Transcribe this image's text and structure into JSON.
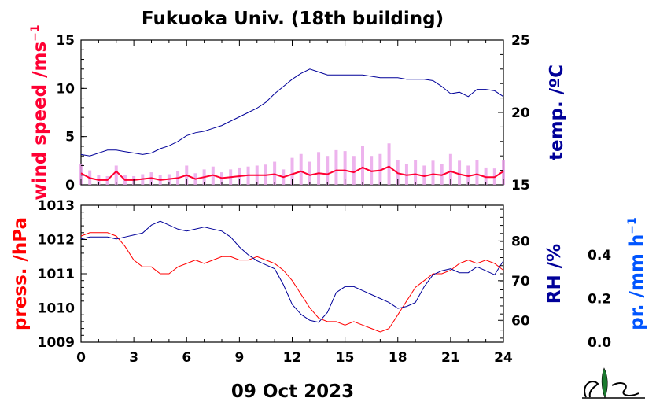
{
  "title": "Fukuoka Univ. (18th building)",
  "date_label": "09 Oct 2023",
  "colors": {
    "wind": "#ff0033",
    "wind_gust": "#e8a0e8",
    "temp": "#000099",
    "pressure": "#ff0000",
    "rh": "#000099",
    "precip": "#0055ff"
  },
  "logo": "NES",
  "chart_data": [
    {
      "type": "line",
      "panel": "top",
      "x_ticks": [
        "0",
        "3",
        "6",
        "9",
        "12",
        "15",
        "18",
        "21",
        "24"
      ],
      "xlim": [
        0,
        24
      ],
      "left_axis": {
        "label": "wind speed /ms",
        "label_sup": "−1",
        "ylim": [
          0,
          15
        ],
        "ticks": [
          "0",
          "5",
          "10",
          "15"
        ]
      },
      "right_axis": {
        "label": "temp. /ºC",
        "ylim": [
          15,
          25
        ],
        "ticks": [
          "15",
          "20",
          "25"
        ]
      },
      "series": [
        {
          "name": "wind speed",
          "axis": "left",
          "x": [
            0,
            0.5,
            1,
            1.5,
            2,
            2.5,
            3,
            3.5,
            4,
            4.5,
            5,
            5.5,
            6,
            6.5,
            7,
            7.5,
            8,
            8.5,
            9,
            9.5,
            10,
            10.5,
            11,
            11.5,
            12,
            12.5,
            13,
            13.5,
            14,
            14.5,
            15,
            15.5,
            16,
            16.5,
            17,
            17.5,
            18,
            18.5,
            19,
            19.5,
            20,
            20.5,
            21,
            21.5,
            22,
            22.5,
            23,
            23.5,
            24
          ],
          "values": [
            1.2,
            0.7,
            0.5,
            0.5,
            1.4,
            0.5,
            0.5,
            0.6,
            0.7,
            0.5,
            0.6,
            0.7,
            1.0,
            0.6,
            0.8,
            1.0,
            0.7,
            0.8,
            0.9,
            1.0,
            1.0,
            1.0,
            1.1,
            0.8,
            1.1,
            1.4,
            1.0,
            1.2,
            1.1,
            1.5,
            1.5,
            1.3,
            1.8,
            1.4,
            1.5,
            1.9,
            1.2,
            1.0,
            1.1,
            0.9,
            1.1,
            1.0,
            1.4,
            1.1,
            0.9,
            1.1,
            0.8,
            0.8,
            1.4
          ]
        },
        {
          "name": "max wind speed",
          "axis": "left",
          "x": [
            0,
            0.5,
            1,
            1.5,
            2,
            2.5,
            3,
            3.5,
            4,
            4.5,
            5,
            5.5,
            6,
            6.5,
            7,
            7.5,
            8,
            8.5,
            9,
            9.5,
            10,
            10.5,
            11,
            11.5,
            12,
            12.5,
            13,
            13.5,
            14,
            14.5,
            15,
            15.5,
            16,
            16.5,
            17,
            17.5,
            18,
            18.5,
            19,
            19.5,
            20,
            20.5,
            21,
            21.5,
            22,
            22.5,
            23,
            23.5,
            24
          ],
          "values": [
            2.2,
            1.5,
            1.0,
            0.9,
            2.0,
            1.0,
            0.9,
            1.1,
            1.3,
            1.0,
            1.1,
            1.4,
            2.0,
            1.2,
            1.6,
            1.9,
            1.3,
            1.6,
            1.8,
            1.9,
            2.0,
            2.1,
            2.4,
            1.6,
            2.8,
            3.2,
            2.4,
            3.4,
            3.0,
            3.6,
            3.5,
            3.0,
            4.0,
            3.0,
            3.2,
            4.3,
            2.6,
            2.2,
            2.6,
            2.0,
            2.5,
            2.2,
            3.2,
            2.5,
            2.0,
            2.6,
            1.8,
            1.7,
            2.6
          ]
        },
        {
          "name": "temperature",
          "axis": "right",
          "x": [
            0,
            0.5,
            1,
            1.5,
            2,
            2.5,
            3,
            3.5,
            4,
            4.5,
            5,
            5.5,
            6,
            6.5,
            7,
            7.5,
            8,
            8.5,
            9,
            9.5,
            10,
            10.5,
            11,
            11.5,
            12,
            12.5,
            13,
            13.5,
            14,
            14.5,
            15,
            15.5,
            16,
            16.5,
            17,
            17.5,
            18,
            18.5,
            19,
            19.5,
            20,
            20.5,
            21,
            21.5,
            22,
            22.5,
            23,
            23.5,
            24
          ],
          "values": [
            17.1,
            17.0,
            17.2,
            17.4,
            17.4,
            17.3,
            17.2,
            17.1,
            17.2,
            17.5,
            17.7,
            18.0,
            18.4,
            18.6,
            18.7,
            18.9,
            19.1,
            19.4,
            19.7,
            20.0,
            20.3,
            20.7,
            21.3,
            21.8,
            22.3,
            22.7,
            23.0,
            22.8,
            22.6,
            22.6,
            22.6,
            22.6,
            22.6,
            22.5,
            22.4,
            22.4,
            22.4,
            22.3,
            22.3,
            22.3,
            22.2,
            21.8,
            21.3,
            21.4,
            21.1,
            21.6,
            21.6,
            21.5,
            21.1
          ]
        }
      ]
    },
    {
      "type": "line",
      "panel": "bottom",
      "x_ticks": [
        "0",
        "3",
        "6",
        "9",
        "12",
        "15",
        "18",
        "21",
        "24"
      ],
      "xlim": [
        0,
        24
      ],
      "xlabel": "09 Oct 2023",
      "left_axis": {
        "label": "press. /hPa",
        "ylim": [
          1009,
          1013
        ],
        "ticks": [
          "1009",
          "1010",
          "1011",
          "1012",
          "1013"
        ]
      },
      "right_axis": {
        "label": "RH /%",
        "ylim": [
          54.5,
          89
        ],
        "ticks": [
          "60",
          "70",
          "80"
        ]
      },
      "precip_axis": {
        "label": "pr. /mm h",
        "label_sup": "−1",
        "ylim": [
          0,
          0.5
        ],
        "ticks": [
          "0.0",
          "0.2",
          "0.4"
        ]
      },
      "series": [
        {
          "name": "pressure",
          "axis": "left",
          "x": [
            0,
            0.5,
            1,
            1.5,
            2,
            2.5,
            3,
            3.5,
            4,
            4.5,
            5,
            5.5,
            6,
            6.5,
            7,
            7.5,
            8,
            8.5,
            9,
            9.5,
            10,
            10.5,
            11,
            11.5,
            12,
            12.5,
            13,
            13.5,
            14,
            14.5,
            15,
            15.5,
            16,
            16.5,
            17,
            17.5,
            18,
            18.5,
            19,
            19.5,
            20,
            20.5,
            21,
            21.5,
            22,
            22.5,
            23,
            23.5,
            24
          ],
          "values": [
            1012.1,
            1012.2,
            1012.2,
            1012.2,
            1012.1,
            1011.8,
            1011.4,
            1011.2,
            1011.2,
            1011.0,
            1011.0,
            1011.2,
            1011.3,
            1011.4,
            1011.3,
            1011.4,
            1011.5,
            1011.5,
            1011.4,
            1011.4,
            1011.5,
            1011.4,
            1011.3,
            1011.1,
            1010.8,
            1010.4,
            1010.0,
            1009.7,
            1009.6,
            1009.6,
            1009.5,
            1009.6,
            1009.5,
            1009.4,
            1009.3,
            1009.4,
            1009.8,
            1010.2,
            1010.6,
            1010.8,
            1011.0,
            1011.0,
            1011.1,
            1011.3,
            1011.4,
            1011.3,
            1011.4,
            1011.3,
            1011.1
          ]
        },
        {
          "name": "relative humidity",
          "axis": "right",
          "x": [
            0,
            0.5,
            1,
            1.5,
            2,
            2.5,
            3,
            3.5,
            4,
            4.5,
            5,
            5.5,
            6,
            6.5,
            7,
            7.5,
            8,
            8.5,
            9,
            9.5,
            10,
            10.5,
            11,
            11.5,
            12,
            12.5,
            13,
            13.5,
            14,
            14.5,
            15,
            15.5,
            16,
            16.5,
            17,
            17.5,
            18,
            18.5,
            19,
            19.5,
            20,
            20.5,
            21,
            21.5,
            22,
            22.5,
            23,
            23.5,
            24
          ],
          "values": [
            80.5,
            81,
            81,
            81,
            80.5,
            81,
            81.5,
            82,
            84,
            85,
            84,
            83,
            82.5,
            83,
            83.5,
            83,
            82.5,
            81,
            78.5,
            76.5,
            75,
            74,
            73,
            69,
            64,
            61.5,
            60,
            59.5,
            62,
            67,
            68.5,
            68.5,
            67.5,
            66.5,
            65.5,
            64.5,
            63,
            63.5,
            64.5,
            68.5,
            71.5,
            72.5,
            73,
            72,
            72,
            73.5,
            72.5,
            71.5,
            75
          ]
        },
        {
          "name": "precipitation",
          "axis": "precip",
          "x": [
            0,
            24
          ],
          "values": [
            0,
            0
          ]
        }
      ]
    }
  ]
}
